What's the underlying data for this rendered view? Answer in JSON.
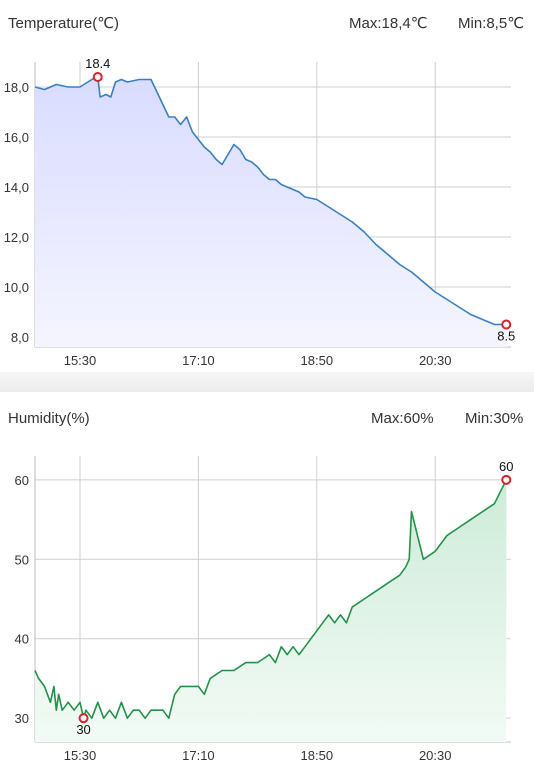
{
  "temperature": {
    "title": "Temperature(℃)",
    "max_text": "Max:18,4℃",
    "min_text": "Min:8,5℃",
    "colors": {
      "line": "#3a7fc0",
      "fill_top": "#d9dcff",
      "fill_bottom": "#f5f5ff",
      "marker": "#d9232a"
    }
  },
  "humidity": {
    "title": "Humidity(%)",
    "max_text": "Max:60%",
    "min_text": "Min:30%",
    "colors": {
      "line": "#23914a",
      "fill_top": "#cdebd8",
      "fill_bottom": "#f3fbf6",
      "marker": "#d9232a"
    }
  },
  "chart_data": [
    {
      "type": "area",
      "title": "Temperature(℃)",
      "x_ticks": [
        "15:30",
        "17:10",
        "18:50",
        "20:30"
      ],
      "xlim": [
        "14:52",
        "21:34"
      ],
      "ylim": [
        7.6,
        19.0
      ],
      "y_ticks": [
        8.0,
        10.0,
        12.0,
        14.0,
        16.0,
        18.0
      ],
      "y_tick_labels": [
        "8,0",
        "10,0",
        "12,0",
        "14,0",
        "16,0",
        "18,0"
      ],
      "grid": true,
      "x": [
        "14:52",
        "15:00",
        "15:10",
        "15:20",
        "15:30",
        "15:40",
        "15:45",
        "15:47",
        "15:52",
        "15:56",
        "16:00",
        "16:05",
        "16:10",
        "16:20",
        "16:30",
        "16:40",
        "16:45",
        "16:50",
        "16:55",
        "17:00",
        "17:05",
        "17:10",
        "17:15",
        "17:20",
        "17:25",
        "17:30",
        "17:35",
        "17:40",
        "17:45",
        "17:50",
        "17:55",
        "18:00",
        "18:05",
        "18:10",
        "18:15",
        "18:20",
        "18:25",
        "18:30",
        "18:35",
        "18:40",
        "18:50",
        "19:00",
        "19:10",
        "19:20",
        "19:30",
        "19:40",
        "19:50",
        "20:00",
        "20:10",
        "20:20",
        "20:30",
        "20:40",
        "20:50",
        "21:00",
        "21:10",
        "21:20",
        "21:30"
      ],
      "series": [
        {
          "values": [
            18.0,
            17.9,
            18.1,
            18.0,
            18.0,
            18.3,
            18.4,
            17.6,
            17.7,
            17.6,
            18.2,
            18.3,
            18.2,
            18.3,
            18.3,
            17.3,
            16.8,
            16.8,
            16.5,
            16.8,
            16.2,
            15.9,
            15.6,
            15.4,
            15.1,
            14.9,
            15.3,
            15.7,
            15.5,
            15.1,
            15.0,
            14.8,
            14.5,
            14.3,
            14.3,
            14.1,
            14.0,
            13.9,
            13.8,
            13.6,
            13.5,
            13.2,
            12.9,
            12.6,
            12.2,
            11.7,
            11.3,
            10.9,
            10.6,
            10.2,
            9.8,
            9.5,
            9.2,
            8.9,
            8.7,
            8.5,
            8.5
          ]
        }
      ],
      "annotations": [
        {
          "x": "15:45",
          "y": 18.4,
          "label": "18.4"
        },
        {
          "x": "21:30",
          "y": 8.5,
          "label": "8.5"
        }
      ]
    },
    {
      "type": "area",
      "title": "Humidity(%)",
      "x_ticks": [
        "15:30",
        "17:10",
        "18:50",
        "20:30"
      ],
      "xlim": [
        "14:52",
        "21:34"
      ],
      "ylim": [
        27,
        63
      ],
      "y_ticks": [
        30,
        40,
        50,
        60
      ],
      "y_tick_labels": [
        "30",
        "40",
        "50",
        "60"
      ],
      "grid": true,
      "x": [
        "14:52",
        "14:55",
        "15:00",
        "15:05",
        "15:08",
        "15:10",
        "15:12",
        "15:15",
        "15:20",
        "15:25",
        "15:30",
        "15:33",
        "15:35",
        "15:40",
        "15:45",
        "15:50",
        "15:55",
        "16:00",
        "16:05",
        "16:10",
        "16:15",
        "16:20",
        "16:25",
        "16:30",
        "16:40",
        "16:45",
        "16:50",
        "16:55",
        "17:00",
        "17:05",
        "17:10",
        "17:15",
        "17:20",
        "17:30",
        "17:40",
        "17:50",
        "18:00",
        "18:10",
        "18:15",
        "18:20",
        "18:25",
        "18:30",
        "18:35",
        "18:40",
        "18:45",
        "18:50",
        "18:55",
        "19:00",
        "19:05",
        "19:10",
        "19:15",
        "19:20",
        "19:30",
        "19:40",
        "19:50",
        "20:00",
        "20:05",
        "20:08",
        "20:10",
        "20:20",
        "20:30",
        "20:40",
        "20:50",
        "21:00",
        "21:10",
        "21:20",
        "21:30"
      ],
      "series": [
        {
          "values": [
            36,
            35,
            34,
            32,
            34,
            31,
            33,
            31,
            32,
            31,
            32,
            30,
            31,
            30,
            32,
            30,
            31,
            30,
            32,
            30,
            31,
            31,
            30,
            31,
            31,
            30,
            33,
            34,
            34,
            34,
            34,
            33,
            35,
            36,
            36,
            37,
            37,
            38,
            37,
            39,
            38,
            39,
            38,
            39,
            40,
            41,
            42,
            43,
            42,
            43,
            42,
            44,
            45,
            46,
            47,
            48,
            49,
            50,
            56,
            50,
            51,
            53,
            54,
            55,
            56,
            57,
            60
          ]
        }
      ],
      "annotations": [
        {
          "x": "15:33",
          "y": 30,
          "label": "30"
        },
        {
          "x": "21:30",
          "y": 60,
          "label": "60"
        }
      ]
    }
  ]
}
